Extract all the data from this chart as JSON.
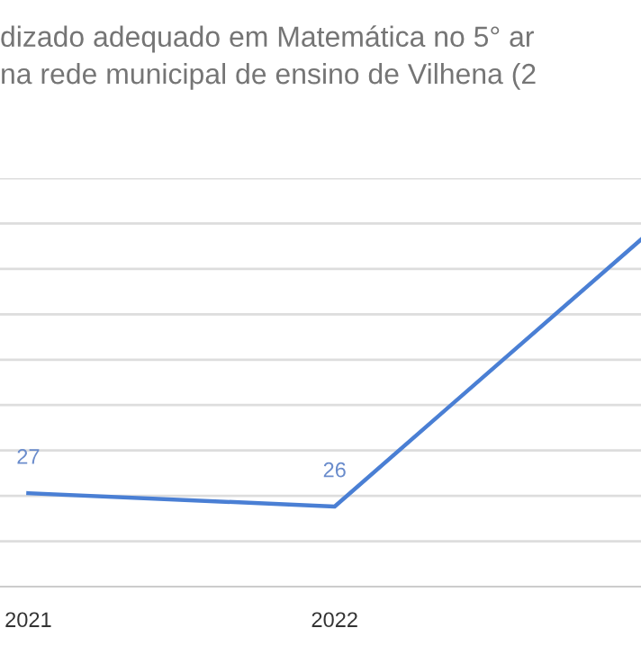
{
  "chart_data": {
    "type": "line",
    "title": "dizado adequado em Matemática no 5° ar\nna rede municipal de ensino de Vilhena (2",
    "categories": [
      "2021",
      "2022",
      null
    ],
    "series": [
      {
        "color": "#4a7fd4",
        "values": [
          27,
          26,
          46
        ],
        "value_labels": [
          "27",
          "26",
          null
        ]
      }
    ],
    "ylim": [
      20,
      50.6
    ],
    "yticks": [
      {
        "value": 23.4,
        "label": null
      },
      {
        "value": 26.8,
        "label": null
      },
      {
        "value": 30.2,
        "label": null
      },
      {
        "value": 33.6,
        "label": null
      },
      {
        "value": 37,
        "label": null
      },
      {
        "value": 40.4,
        "label": null
      },
      {
        "value": 43.8,
        "label": null
      },
      {
        "value": 47.2,
        "label": null
      },
      {
        "value": 50.6,
        "label": null
      }
    ],
    "tick_labels": "x",
    "grid": "y",
    "marker": "none",
    "line_style": "solid",
    "legend": false
  }
}
